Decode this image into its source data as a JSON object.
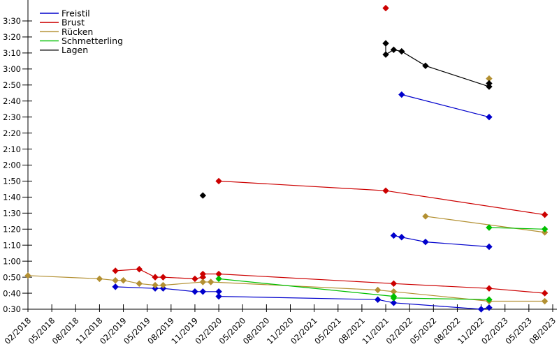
{
  "chart_data": {
    "type": "line",
    "title": "",
    "xlabel": "",
    "ylabel": "",
    "grid": false,
    "legend_position": "top-left",
    "x_range": [
      "02/2018",
      "08/2023"
    ],
    "x_tick_step_months": 3,
    "x_tick_labels": [
      "02/2018",
      "05/2018",
      "08/2018",
      "11/2018",
      "02/2019",
      "05/2019",
      "08/2019",
      "11/2019",
      "02/2020",
      "05/2020",
      "08/2020",
      "11/2020",
      "02/2021",
      "05/2021",
      "08/2021",
      "11/2021",
      "02/2022",
      "05/2022",
      "08/2022",
      "11/2022",
      "02/2023",
      "05/2023",
      "08/2023"
    ],
    "y_range": [
      "0:30",
      "3:30"
    ],
    "y_tick_labels": [
      "0:30",
      "0:40",
      "0:50",
      "1:00",
      "1:10",
      "1:20",
      "1:30",
      "1:40",
      "1:50",
      "2:00",
      "2:10",
      "2:20",
      "2:30",
      "2:40",
      "2:50",
      "3:00",
      "3:10",
      "3:20",
      "3:30"
    ],
    "y_unit": "min:sec",
    "legend": [
      "Freistil",
      "Brust",
      "Rücken",
      "Schmetterling",
      "Lagen"
    ],
    "series": [
      {
        "name": "Freistil",
        "color": "#0000cc",
        "segments": [
          [
            [
              "01/2019",
              "0:44"
            ],
            [
              "06/2019",
              "0:43"
            ],
            [
              "07/2019",
              "0:43"
            ],
            [
              "11/2019",
              "0:41"
            ],
            [
              "12/2019",
              "0:41"
            ],
            [
              "02/2020",
              "0:41"
            ],
            [
              "02/2020",
              "0:38"
            ],
            [
              "10/2021",
              "0:36"
            ],
            [
              "12/2021",
              "0:34"
            ],
            [
              "11/2022",
              "0:30"
            ],
            [
              "12/2022",
              "0:31"
            ]
          ],
          [
            [
              "12/2021",
              "1:16"
            ],
            [
              "01/2022",
              "1:15"
            ],
            [
              "04/2022",
              "1:12"
            ],
            [
              "12/2022",
              "1:09"
            ]
          ],
          [
            [
              "01/2022",
              "2:44"
            ],
            [
              "12/2022",
              "2:30"
            ]
          ]
        ]
      },
      {
        "name": "Brust",
        "color": "#cc0000",
        "segments": [
          [
            [
              "01/2019",
              "0:54"
            ],
            [
              "04/2019",
              "0:55"
            ],
            [
              "06/2019",
              "0:50"
            ],
            [
              "07/2019",
              "0:50"
            ],
            [
              "11/2019",
              "0:49"
            ],
            [
              "12/2019",
              "0:50"
            ],
            [
              "12/2019",
              "0:52"
            ],
            [
              "02/2020",
              "0:52"
            ],
            [
              "12/2021",
              "0:46"
            ],
            [
              "12/2022",
              "0:43"
            ],
            [
              "07/2023",
              "0:40"
            ]
          ],
          [
            [
              "02/2020",
              "1:50"
            ],
            [
              "11/2021",
              "1:44"
            ],
            [
              "07/2023",
              "1:29"
            ]
          ],
          [
            [
              "11/2021",
              "3:38"
            ]
          ]
        ]
      },
      {
        "name": "Rücken",
        "color": "#b39032",
        "segments": [
          [
            [
              "02/2018",
              "0:51"
            ],
            [
              "11/2018",
              "0:49"
            ],
            [
              "01/2019",
              "0:48"
            ],
            [
              "02/2019",
              "0:48"
            ],
            [
              "04/2019",
              "0:46"
            ],
            [
              "06/2019",
              "0:45"
            ],
            [
              "07/2019",
              "0:45"
            ],
            [
              "12/2019",
              "0:47"
            ],
            [
              "01/2020",
              "0:47"
            ],
            [
              "10/2021",
              "0:42"
            ],
            [
              "12/2021",
              "0:41"
            ],
            [
              "12/2022",
              "0:35"
            ],
            [
              "07/2023",
              "0:35"
            ]
          ],
          [
            [
              "04/2022",
              "1:28"
            ],
            [
              "07/2023",
              "1:18"
            ]
          ],
          [
            [
              "12/2022",
              "2:54"
            ]
          ]
        ]
      },
      {
        "name": "Schmetterling",
        "color": "#00c000",
        "segments": [
          [
            [
              "02/2020",
              "0:49"
            ],
            [
              "12/2021",
              "0:38"
            ],
            [
              "12/2021",
              "0:37"
            ],
            [
              "12/2022",
              "0:36"
            ]
          ],
          [
            [
              "12/2022",
              "1:21"
            ],
            [
              "07/2023",
              "1:20"
            ]
          ]
        ]
      },
      {
        "name": "Lagen",
        "color": "#000000",
        "segments": [
          [
            [
              "11/2021",
              "3:16"
            ],
            [
              "11/2021",
              "3:09"
            ],
            [
              "12/2021",
              "3:12"
            ],
            [
              "01/2022",
              "3:11"
            ],
            [
              "04/2022",
              "3:02"
            ],
            [
              "12/2022",
              "2:49"
            ],
            [
              "12/2022",
              "2:51"
            ]
          ],
          [
            [
              "12/2019",
              "1:41"
            ]
          ]
        ]
      }
    ]
  }
}
